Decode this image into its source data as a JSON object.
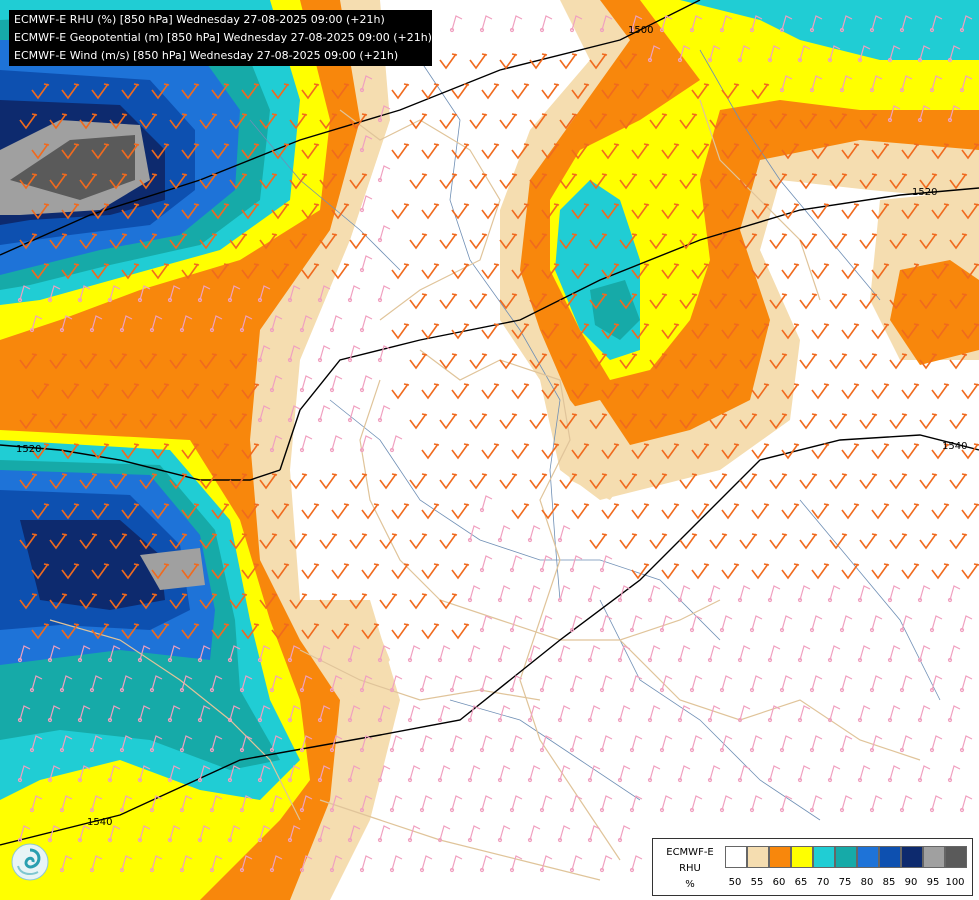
{
  "header": {
    "lines": [
      "ECMWF-E RHU (%) [850 hPa] Wednesday 27-08-2025 09:00 (+21h)",
      "ECMWF-E Geopotential (m) [850 hPa] Wednesday 27-08-2025 09:00 (+21h)",
      "ECMWF-E Wind (m/s) [850 hPa] Wednesday 27-08-2025 09:00 (+21h)"
    ]
  },
  "contours": {
    "labels": [
      "1500",
      "1520",
      "1520",
      "1540",
      "1540"
    ]
  },
  "legend": {
    "title": [
      "ECMWF-E",
      "RHU",
      "%"
    ],
    "ticks": [
      "50",
      "55",
      "60",
      "65",
      "70",
      "75",
      "80",
      "85",
      "90",
      "95",
      "100"
    ],
    "colors": [
      "#ffffff",
      "#f5ddb0",
      "#f8870c",
      "#ffff00",
      "#20cdd4",
      "#16aaa8",
      "#1e73d8",
      "#0d50b0",
      "#0d2a6e",
      "#a0a0a0",
      "#5a5a5a"
    ]
  },
  "colors": {
    "wind_strong": "#f06a1e",
    "wind_weak": "#f0a0c0",
    "border": "#e0c49a",
    "river": "#6f8fb5",
    "isohypse": "#000000"
  },
  "icons": {
    "logo": "swirl-logo-icon"
  }
}
